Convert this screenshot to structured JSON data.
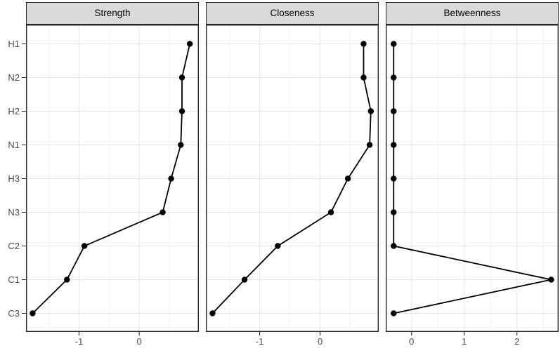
{
  "chart_data": {
    "type": "line",
    "title": "",
    "description": "Faceted dot-and-line centrality plot; points per category connected vertically, standardized (z-score) x-axes",
    "categories": [
      "H1",
      "N2",
      "H2",
      "N1",
      "H3",
      "N3",
      "C2",
      "C1",
      "C3"
    ],
    "grid": true,
    "legend": "none",
    "facets": [
      {
        "label": "Strength",
        "xlim": [
          -1.88,
          0.99
        ],
        "major_ticks": [
          -1,
          0
        ],
        "minor_ticks": [
          -1.5,
          -0.5,
          0.5
        ],
        "tick_labels": [
          "-1",
          "0"
        ],
        "values": [
          0.84,
          0.71,
          0.71,
          0.69,
          0.53,
          0.39,
          -0.91,
          -1.2,
          -1.77
        ]
      },
      {
        "label": "Closeness",
        "xlim": [
          -1.89,
          0.97
        ],
        "major_ticks": [
          -1,
          0
        ],
        "minor_ticks": [
          -1.5,
          -0.5,
          0.5
        ],
        "tick_labels": [
          "-1",
          "0"
        ],
        "values": [
          0.72,
          0.72,
          0.84,
          0.82,
          0.46,
          0.18,
          -0.7,
          -1.25,
          -1.78
        ]
      },
      {
        "label": "Betweenness",
        "xlim": [
          -0.49,
          2.79
        ],
        "major_ticks": [
          0,
          1,
          2
        ],
        "minor_ticks": [
          0.5,
          1.5,
          2.5
        ],
        "tick_labels": [
          "0",
          "1",
          "2"
        ],
        "values": [
          -0.34,
          -0.34,
          -0.34,
          -0.34,
          -0.34,
          -0.34,
          -0.34,
          2.65,
          -0.34
        ]
      }
    ],
    "colors": {
      "point": "#000000",
      "line": "#000000",
      "grid_major": "#E5E5E5",
      "grid_minor": "#F2F2F2",
      "panel_border": "#262626",
      "panel_background": "#FFFFFF",
      "strip_fill": "#DADADA",
      "strip_border": "#262626",
      "axis_text": "#4D4D4D",
      "background": "#FFFFFF"
    }
  }
}
